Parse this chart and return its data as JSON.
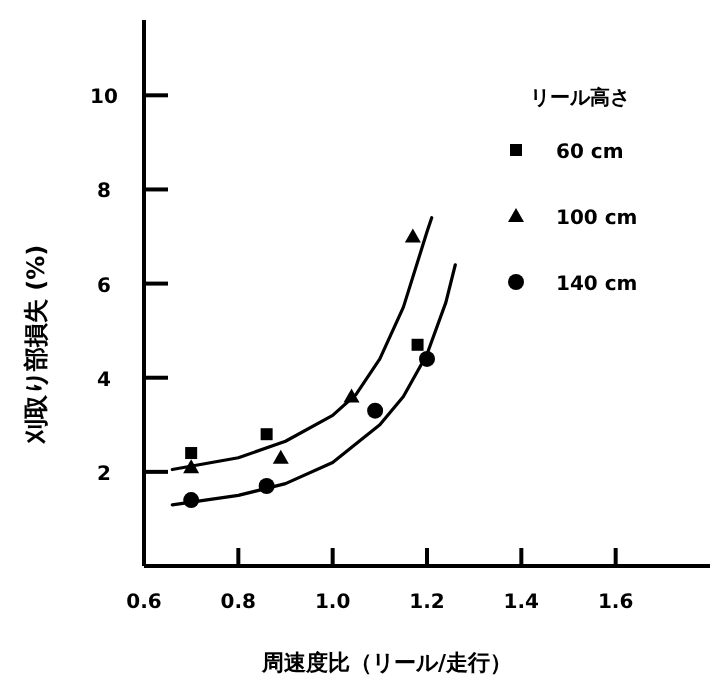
{
  "chart_data": {
    "type": "scatter",
    "xlabel": "周速度比（リール/走行）",
    "ylabel": "刈取り部損失 (%)",
    "legend_title": "リール高さ",
    "xlim": [
      0.6,
      1.8
    ],
    "ylim": [
      0,
      11.6
    ],
    "xticks": [
      0.6,
      0.8,
      {
        "value": 1.0,
        "label": "1.0"
      },
      1.2,
      1.4,
      1.6
    ],
    "yticks": [
      2,
      4,
      6,
      8,
      10
    ],
    "grid": false,
    "legend": "top right",
    "series": [
      {
        "name": "60 cm",
        "type": "scatter",
        "marker": "square",
        "color": "#000000",
        "x": [
          0.7,
          0.86,
          1.18
        ],
        "values": [
          2.4,
          2.8,
          4.7
        ]
      },
      {
        "name": "100 cm",
        "type": "scatter",
        "marker": "triangle",
        "color": "#000000",
        "x": [
          0.7,
          0.89,
          1.04,
          1.17
        ],
        "values": [
          2.1,
          2.3,
          3.6,
          7.0
        ]
      },
      {
        "name": "140 cm",
        "type": "scatter",
        "marker": "circle",
        "color": "#000000",
        "x": [
          0.7,
          0.86,
          1.09,
          1.2
        ],
        "values": [
          1.4,
          1.7,
          3.3,
          4.4
        ]
      },
      {
        "type": "line",
        "marker": "none",
        "color": "#000000",
        "x": [
          0.66,
          0.8,
          0.9,
          1.0,
          1.05,
          1.1,
          1.15,
          1.2,
          1.21
        ],
        "values": [
          2.05,
          2.3,
          2.65,
          3.2,
          3.65,
          4.4,
          5.5,
          7.1,
          7.4
        ]
      },
      {
        "type": "line",
        "marker": "none",
        "color": "#000000",
        "x": [
          0.66,
          0.8,
          0.9,
          1.0,
          1.1,
          1.15,
          1.2,
          1.24,
          1.26
        ],
        "values": [
          1.3,
          1.5,
          1.75,
          2.2,
          3.0,
          3.6,
          4.5,
          5.6,
          6.4
        ]
      }
    ]
  }
}
